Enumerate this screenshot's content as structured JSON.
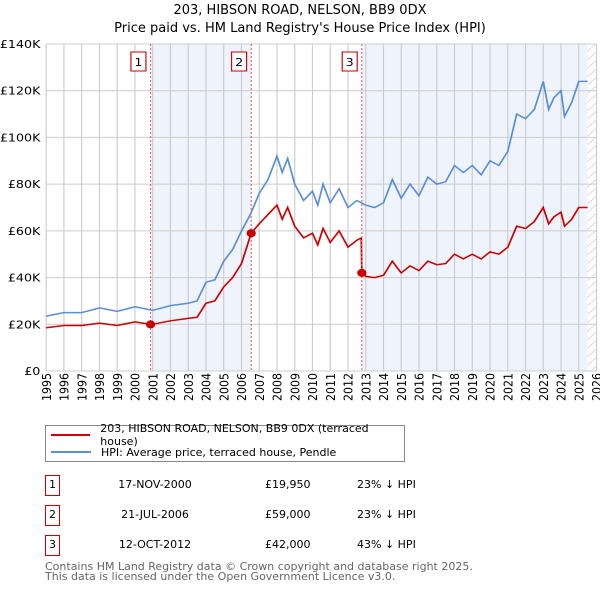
{
  "title": "203, HIBSON ROAD, NELSON, BB9 0DX",
  "subtitle": "Price paid vs. HM Land Registry's House Price Index (HPI)",
  "chart_data": {
    "type": "line",
    "title": "203, HIBSON ROAD, NELSON, BB9 0DX",
    "subtitle": "Price paid vs. HM Land Registry's House Price Index (HPI)",
    "xlim": [
      1995,
      2026
    ],
    "ylim": [
      0,
      140000
    ],
    "x_ticks": [
      "1995",
      "1996",
      "1997",
      "1998",
      "1999",
      "2000",
      "2001",
      "2002",
      "2003",
      "2004",
      "2005",
      "2006",
      "2007",
      "2008",
      "2009",
      "2010",
      "2011",
      "2012",
      "2013",
      "2014",
      "2015",
      "2016",
      "2017",
      "2018",
      "2019",
      "2020",
      "2021",
      "2022",
      "2023",
      "2024",
      "2025",
      "2026"
    ],
    "y_ticks": [
      {
        "v": 0,
        "label": "£0"
      },
      {
        "v": 20000,
        "label": "£20K"
      },
      {
        "v": 40000,
        "label": "£40K"
      },
      {
        "v": 60000,
        "label": "£60K"
      },
      {
        "v": 80000,
        "label": "£80K"
      },
      {
        "v": 100000,
        "label": "£100K"
      },
      {
        "v": 120000,
        "label": "£120K"
      },
      {
        "v": 140000,
        "label": "£140K"
      }
    ],
    "grid": true,
    "legend_placement": "below",
    "series": [
      {
        "name": "203, HIBSON ROAD, NELSON, BB9 0DX (terraced house)",
        "color": "#cc0000",
        "x": [
          1995,
          1996,
          1997,
          1998,
          1999,
          2000,
          2000.88,
          2001,
          2002,
          2003,
          2003.5,
          2004,
          2004.5,
          2005,
          2005.5,
          2006,
          2006.55,
          2007,
          2007.5,
          2008,
          2008.3,
          2008.6,
          2009,
          2009.5,
          2010,
          2010.3,
          2010.6,
          2011,
          2011.5,
          2012,
          2012.5,
          2012.75,
          2012.78,
          2013,
          2013.5,
          2014,
          2014.5,
          2015,
          2015.5,
          2016,
          2016.5,
          2017,
          2017.5,
          2018,
          2018.5,
          2019,
          2019.5,
          2020,
          2020.5,
          2021,
          2021.5,
          2022,
          2022.5,
          2023,
          2023.3,
          2023.6,
          2024,
          2024.2,
          2024.6,
          2025,
          2025.5
        ],
        "y": [
          18500,
          19500,
          19500,
          20500,
          19500,
          21000,
          19950,
          20000,
          21500,
          22500,
          23000,
          29000,
          30000,
          36000,
          40000,
          46000,
          59000,
          63000,
          67000,
          71000,
          65000,
          70000,
          62000,
          57000,
          59000,
          54000,
          61000,
          55000,
          60000,
          53000,
          56000,
          57000,
          42000,
          40500,
          40000,
          41000,
          47000,
          42000,
          45000,
          43000,
          47000,
          45500,
          46000,
          50000,
          48000,
          50000,
          48000,
          51000,
          50000,
          53000,
          62000,
          61000,
          64000,
          70000,
          63000,
          66000,
          68000,
          62000,
          65000,
          70000,
          70000
        ]
      },
      {
        "name": "HPI: Average price, terraced house, Pendle",
        "color": "#5b8fd4",
        "x": [
          1995,
          1996,
          1997,
          1998,
          1999,
          2000,
          2001,
          2002,
          2003,
          2003.5,
          2004,
          2004.5,
          2005,
          2005.5,
          2006,
          2006.5,
          2007,
          2007.5,
          2008,
          2008.3,
          2008.6,
          2009,
          2009.5,
          2010,
          2010.3,
          2010.6,
          2011,
          2011.5,
          2012,
          2012.5,
          2013,
          2013.5,
          2014,
          2014.5,
          2015,
          2015.5,
          2016,
          2016.5,
          2017,
          2017.5,
          2018,
          2018.5,
          2019,
          2019.5,
          2020,
          2020.5,
          2021,
          2021.5,
          2022,
          2022.5,
          2023,
          2023.3,
          2023.6,
          2024,
          2024.2,
          2024.6,
          2025,
          2025.5
        ],
        "y": [
          23500,
          25000,
          25000,
          27000,
          25500,
          27500,
          26000,
          28000,
          29000,
          30000,
          38000,
          39000,
          47000,
          52000,
          60000,
          67000,
          76000,
          82000,
          92000,
          85000,
          91000,
          80000,
          73000,
          77000,
          71000,
          80000,
          72000,
          78000,
          70000,
          73000,
          71000,
          70000,
          72000,
          82000,
          74000,
          80000,
          75000,
          83000,
          80000,
          81000,
          88000,
          85000,
          88000,
          84000,
          90000,
          88000,
          94000,
          110000,
          108000,
          112000,
          124000,
          112000,
          117000,
          120000,
          109000,
          115000,
          124000,
          124000
        ]
      }
    ],
    "sales": [
      {
        "n": "1",
        "x": 2000.88,
        "y": 19950
      },
      {
        "n": "2",
        "x": 2006.55,
        "y": 59000
      },
      {
        "n": "3",
        "x": 2012.78,
        "y": 42000
      }
    ],
    "forecast_start": 2025.5
  },
  "legend": {
    "property": "203, HIBSON ROAD, NELSON, BB9 0DX (terraced house)",
    "hpi": "HPI: Average price, terraced house, Pendle"
  },
  "transactions": [
    {
      "n": "1",
      "date": "17-NOV-2000",
      "price": "£19,950",
      "hpi": "23% ↓ HPI"
    },
    {
      "n": "2",
      "date": "21-JUL-2006",
      "price": "£59,000",
      "hpi": "23% ↓ HPI"
    },
    {
      "n": "3",
      "date": "12-OCT-2012",
      "price": "£42,000",
      "hpi": "43% ↓ HPI"
    }
  ],
  "footer": {
    "line1": "Contains HM Land Registry data © Crown copyright and database right 2025.",
    "line2": "This data is licensed under the Open Government Licence v3.0."
  }
}
